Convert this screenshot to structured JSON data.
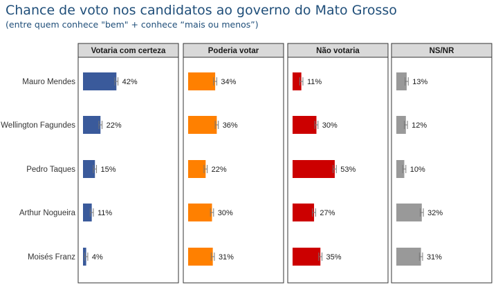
{
  "title": "Chance de voto nos candidatos ao governo do Mato Grosso",
  "subtitle": "(entre quem conhece \"bem\" + conhece  “mais ou menos”)",
  "chart_data": {
    "type": "bar",
    "orientation": "horizontal",
    "categories": [
      "Mauro Mendes",
      "Wellington Fagundes",
      "Pedro Taques",
      "Arthur Nogueira",
      "Moisés Franz"
    ],
    "panels": [
      {
        "name": "Votaria com certeza",
        "color": "#3a5a9b",
        "values": [
          42,
          22,
          15,
          11,
          4
        ],
        "labels": [
          "42%",
          "22%",
          "15%",
          "11%",
          "4%"
        ]
      },
      {
        "name": "Poderia votar",
        "color": "#ff8000",
        "values": [
          34,
          36,
          22,
          30,
          31
        ],
        "labels": [
          "34%",
          "36%",
          "22%",
          "30%",
          "31%"
        ]
      },
      {
        "name": "Não votaria",
        "color": "#cc0000",
        "values": [
          11,
          30,
          53,
          27,
          35
        ],
        "labels": [
          "11%",
          "30%",
          "53%",
          "27%",
          "35%"
        ]
      },
      {
        "name": "NS/NR",
        "color": "#999999",
        "values": [
          13,
          12,
          10,
          32,
          31
        ],
        "labels": [
          "13%",
          "12%",
          "10%",
          "32%",
          "31%"
        ]
      }
    ],
    "error_bars": true,
    "error_margin": 2,
    "xlim": [
      0,
      100
    ],
    "grid": false,
    "legend": "none"
  }
}
